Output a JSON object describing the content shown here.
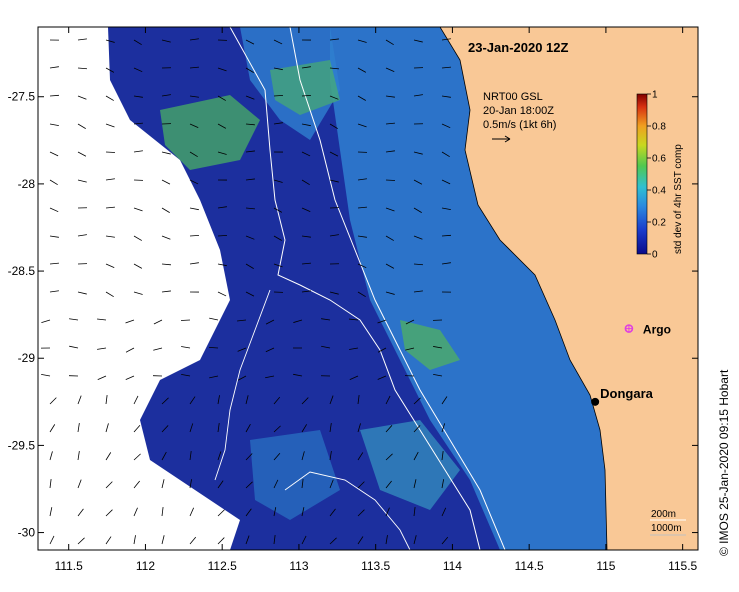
{
  "title": "23-Jan-2020 12Z",
  "current_info": {
    "line1": "NRT00 GSL",
    "line2": "20-Jan 18:00Z",
    "line3": "0.5m/s (1kt 6h)"
  },
  "colorbar": {
    "label": "std dev of 4hr SST comp",
    "min": 0,
    "max": 1,
    "ticks": [
      "1",
      "0.8",
      "0.6",
      "0.4",
      "0.2",
      "0"
    ]
  },
  "axes": {
    "x_ticks": [
      "111.5",
      "112",
      "112.5",
      "113",
      "113.5",
      "114",
      "114.5",
      "115",
      "115.5"
    ],
    "y_ticks": [
      "-27.5",
      "-28",
      "-28.5",
      "-29",
      "-29.5",
      "-30"
    ],
    "lon_range": [
      111.3,
      115.6
    ],
    "lat_range": [
      -27.1,
      -30.1
    ]
  },
  "places": [
    {
      "name": "Argo",
      "lon": 115.15,
      "lat": -28.83,
      "color": "#e040e0"
    },
    {
      "name": "Dongara",
      "lon": 114.93,
      "lat": -29.25,
      "color": "#000000"
    }
  ],
  "isobath_legend": {
    "line1": "200m",
    "line2": "1000m"
  },
  "credit": "© IMOS 25-Jan-2020 09:15 Hobart",
  "colors": {
    "land": "#f9c896",
    "low": "#1a2fa0",
    "mid": "#3fa0d8",
    "high": "#58c848"
  }
}
